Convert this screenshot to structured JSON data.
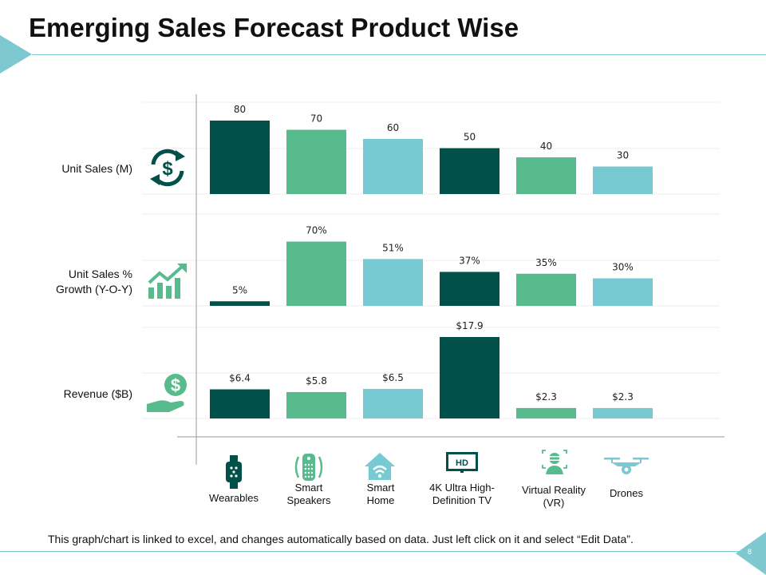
{
  "title": "Emerging Sales Forecast Product Wise",
  "footnote": "This graph/chart is linked to excel, and changes automatically  based on data. Just left click on it and select “Edit Data”.",
  "page_number": "8",
  "colors": {
    "dark_green": "#02504a",
    "mint_green": "#57bb8e",
    "light_teal": "#77c9d2",
    "accent": "#7ec9cf",
    "icon_dark": "#02504a",
    "icon_green": "#57bb8e"
  },
  "row_labels": [
    {
      "line1": "Unit Sales (M)",
      "line2": "",
      "icon": "dollar-cycle-icon"
    },
    {
      "line1": "Unit Sales %",
      "line2": "Growth (Y-O-Y)",
      "icon": "growth-chart-icon"
    },
    {
      "line1": "Revenue ($B)",
      "line2": "",
      "icon": "money-hand-icon"
    }
  ],
  "categories": [
    {
      "line1": "Wearables",
      "line2": "",
      "icon": "smartwatch-icon"
    },
    {
      "line1": "Smart",
      "line2": "Speakers",
      "icon": "smart-speaker-icon"
    },
    {
      "line1": "Smart",
      "line2": "Home",
      "icon": "smart-home-icon"
    },
    {
      "line1": "4K Ultra High-",
      "line2": "Definition TV",
      "icon": "hd-tv-icon"
    },
    {
      "line1": "Virtual Reality",
      "line2": "(VR)",
      "icon": "vr-headset-icon"
    },
    {
      "line1": "Drones",
      "line2": "",
      "icon": "drone-icon"
    }
  ],
  "chart_data": [
    {
      "type": "bar",
      "title": "Unit Sales (M)",
      "categories": [
        "Wearables",
        "Smart Speakers",
        "Smart Home",
        "4K Ultra High-Definition TV",
        "Virtual Reality (VR)",
        "Drones"
      ],
      "values": [
        80,
        70,
        60,
        50,
        40,
        30
      ],
      "labels": [
        "80",
        "70",
        "60",
        "50",
        "40",
        "30"
      ],
      "ylim": [
        0,
        100
      ]
    },
    {
      "type": "bar",
      "title": "Unit Sales % Growth (Y-O-Y)",
      "categories": [
        "Wearables",
        "Smart Speakers",
        "Smart Home",
        "4K Ultra High-Definition TV",
        "Virtual Reality (VR)",
        "Drones"
      ],
      "values": [
        5,
        70,
        51,
        37,
        35,
        30
      ],
      "labels": [
        "5%",
        "70%",
        "51%",
        "37%",
        "35%",
        "30%"
      ],
      "ylim": [
        0,
        100
      ]
    },
    {
      "type": "bar",
      "title": "Revenue ($B)",
      "categories": [
        "Wearables",
        "Smart Speakers",
        "Smart Home",
        "4K Ultra High-Definition TV",
        "Virtual Reality (VR)",
        "Drones"
      ],
      "values": [
        6.4,
        5.8,
        6.5,
        17.9,
        2.3,
        2.3
      ],
      "labels": [
        "$6.4",
        "$5.8",
        "$6.5",
        "$17.9",
        "$2.3",
        "$2.3"
      ],
      "ylim": [
        0,
        20
      ]
    }
  ]
}
